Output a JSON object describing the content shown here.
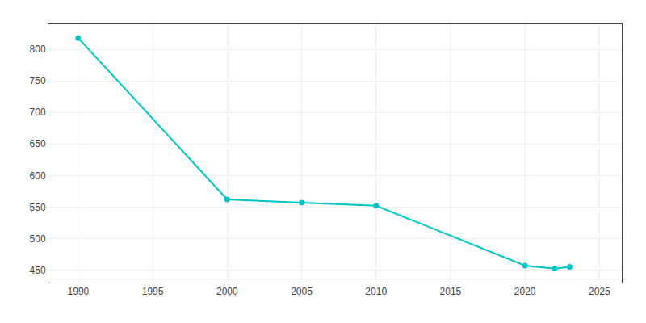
{
  "chart_data": {
    "type": "line",
    "x": [
      1990,
      2000,
      2005,
      2010,
      2020,
      2022,
      2023
    ],
    "values": [
      818,
      562,
      557,
      552,
      457,
      452,
      455
    ],
    "color": "#00c5c8",
    "marker": "circle",
    "xlim": [
      1988,
      2026.5
    ],
    "ylim": [
      430,
      840
    ],
    "xticks": [
      1990,
      1995,
      2000,
      2005,
      2010,
      2015,
      2020,
      2025
    ],
    "yticks": [
      450,
      500,
      550,
      600,
      650,
      700,
      750,
      800
    ],
    "grid": true
  }
}
